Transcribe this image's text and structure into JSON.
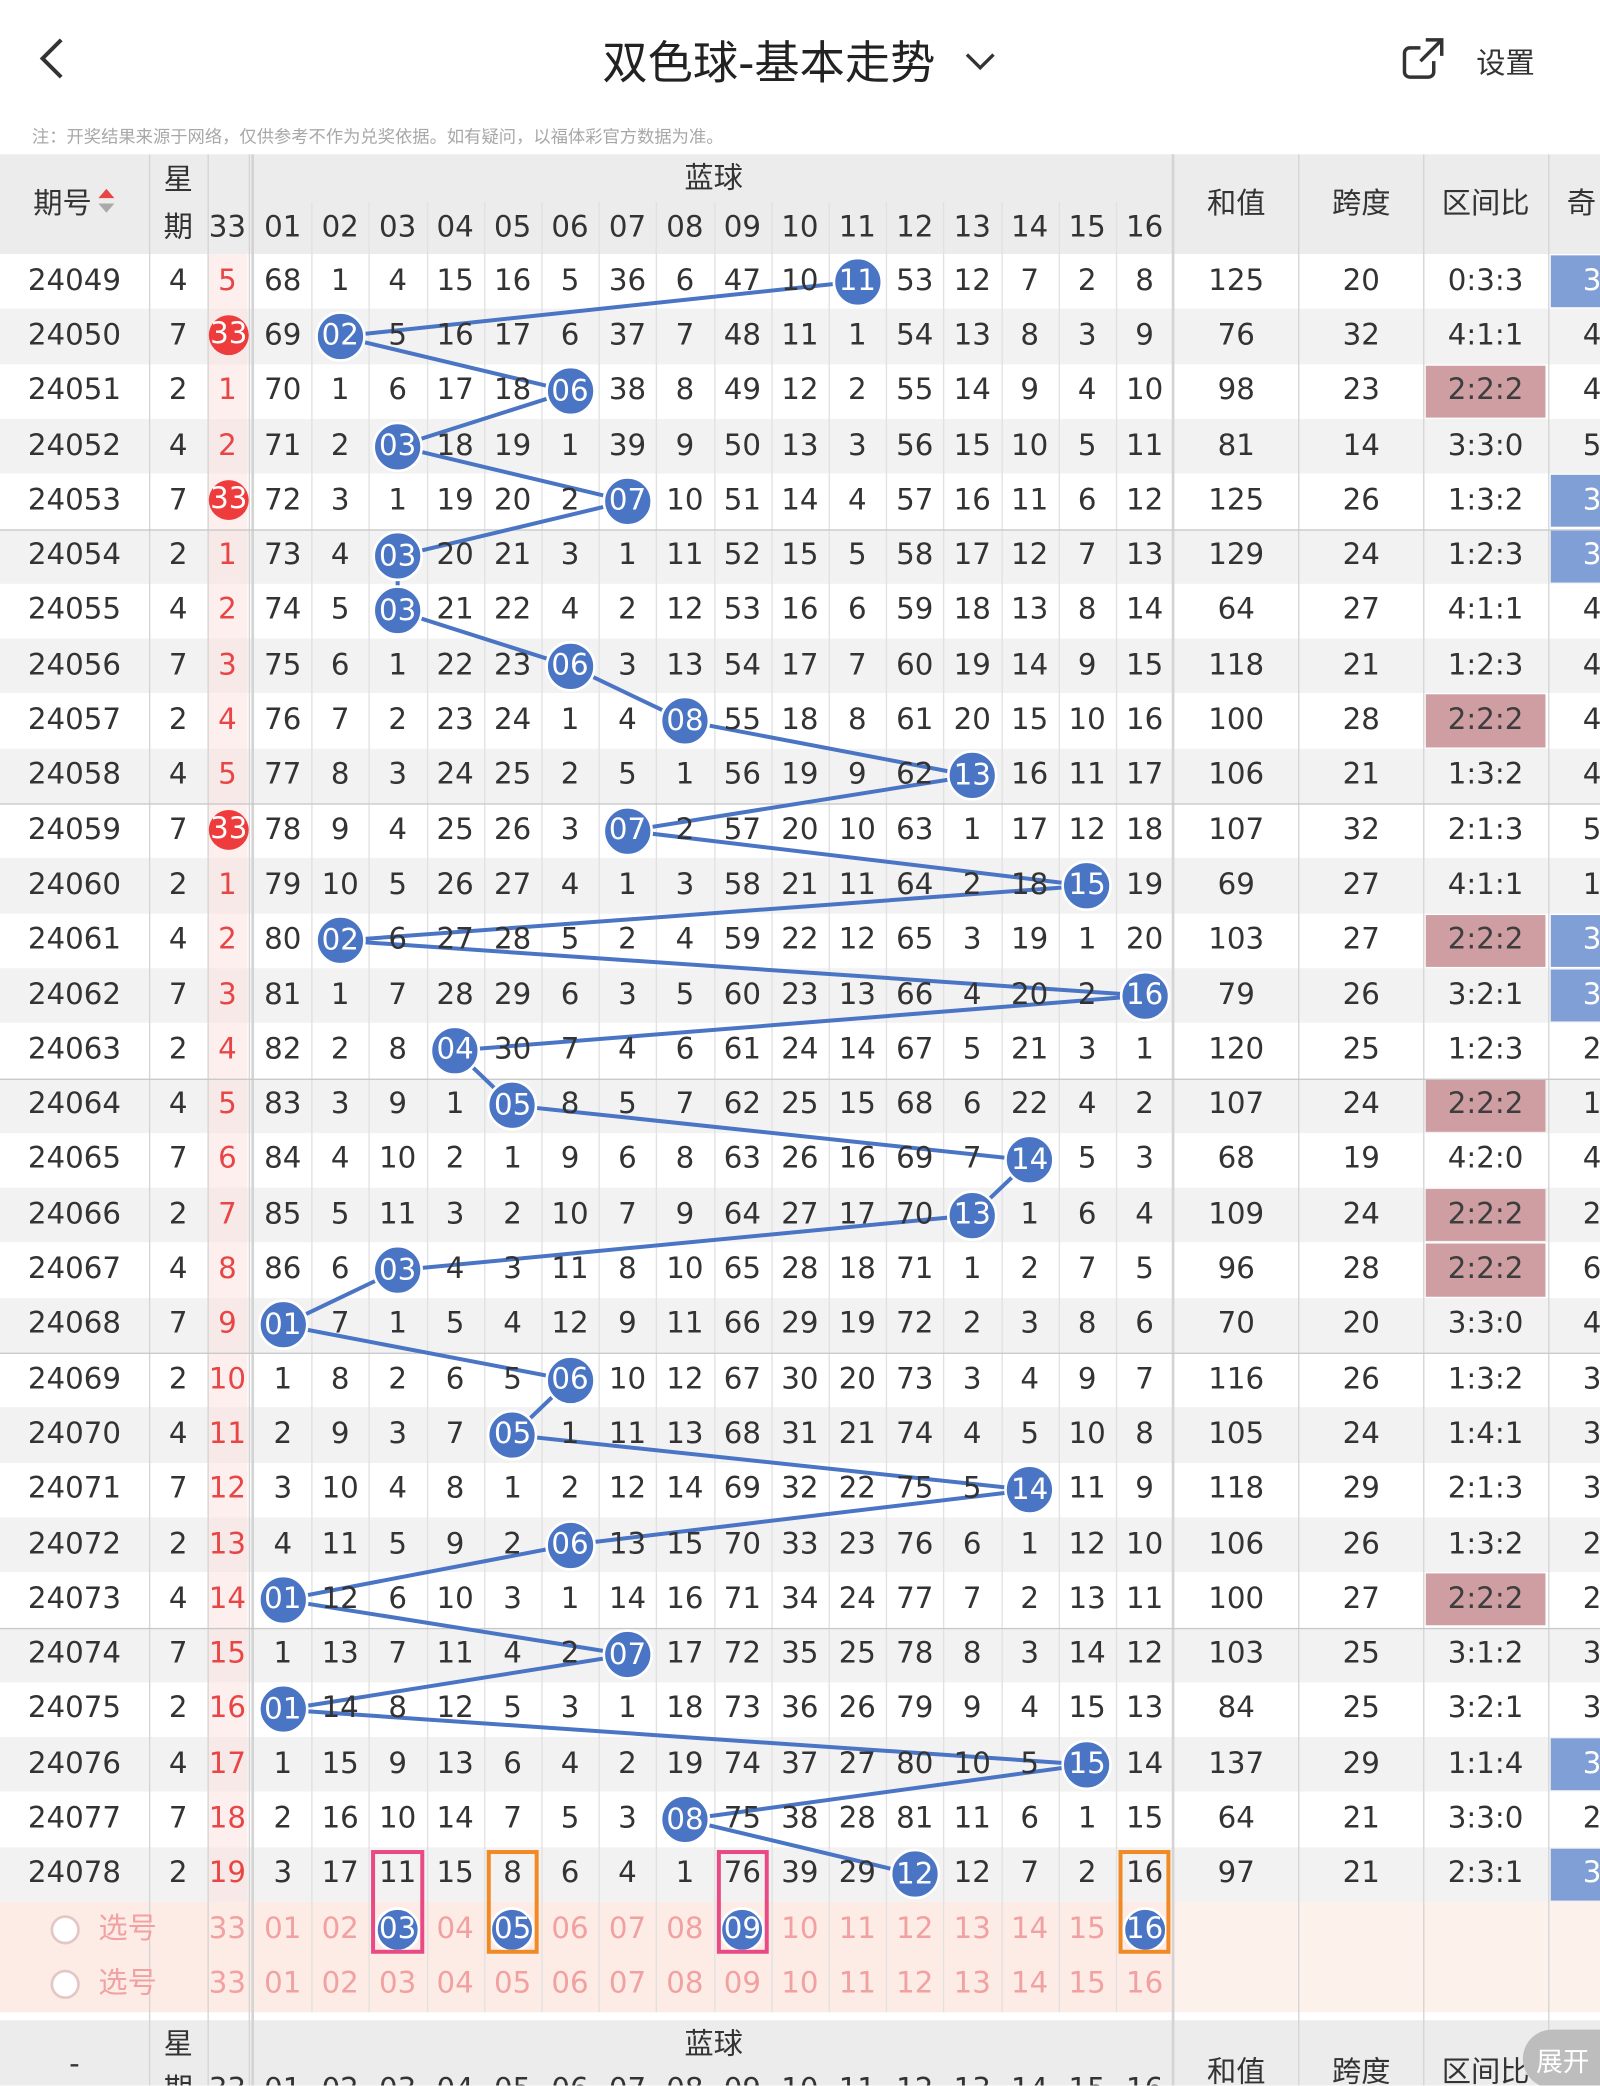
{
  "header": {
    "back_icon": "back-chevron-icon",
    "title": "双色球-基本走势",
    "title_dropdown_icon": "chevron-down-icon",
    "share_icon": "share-icon",
    "settings_label": "设置"
  },
  "note": "注：开奖结果来源于网络，仅供参考不作为兑奖依据。如有疑问，以福体彩官方数据为准。",
  "table": {
    "issue_label": "期号",
    "sort_icon": "sort-arrows-icon",
    "week_label_1": "星",
    "week_label_2": "期",
    "red_last_col": "33",
    "blue_label": "蓝球",
    "blue_cols": [
      "01",
      "02",
      "03",
      "04",
      "05",
      "06",
      "07",
      "08",
      "09",
      "10",
      "11",
      "12",
      "13",
      "14",
      "15",
      "16"
    ],
    "sum_label": "和值",
    "span_label": "跨度",
    "interval_label": "区间比",
    "odd_label_partial": "奇"
  },
  "rows": [
    {
      "issue": "24049",
      "week": "4",
      "red": "5",
      "red_ball": false,
      "blue": [
        68,
        1,
        4,
        15,
        16,
        5,
        36,
        6,
        47,
        10,
        "11",
        53,
        12,
        7,
        2,
        8
      ],
      "sum": "125",
      "span": "20",
      "ratio": "0:3:3",
      "ratio_style": "",
      "odd": "3",
      "odd_style": "blue"
    },
    {
      "issue": "24050",
      "week": "7",
      "red": "33",
      "red_ball": true,
      "blue": [
        69,
        "02",
        5,
        16,
        17,
        6,
        37,
        7,
        48,
        11,
        1,
        54,
        13,
        8,
        3,
        9
      ],
      "sum": "76",
      "span": "32",
      "ratio": "4:1:1",
      "ratio_style": "",
      "odd": "4",
      "odd_style": ""
    },
    {
      "issue": "24051",
      "week": "2",
      "red": "1",
      "red_ball": false,
      "blue": [
        70,
        1,
        6,
        17,
        18,
        "06",
        38,
        8,
        49,
        12,
        2,
        55,
        14,
        9,
        4,
        10
      ],
      "sum": "98",
      "span": "23",
      "ratio": "2:2:2",
      "ratio_style": "red",
      "odd": "4",
      "odd_style": ""
    },
    {
      "issue": "24052",
      "week": "4",
      "red": "2",
      "red_ball": false,
      "blue": [
        71,
        2,
        "03",
        18,
        19,
        1,
        39,
        9,
        50,
        13,
        3,
        56,
        15,
        10,
        5,
        11
      ],
      "sum": "81",
      "span": "14",
      "ratio": "3:3:0",
      "ratio_style": "",
      "odd": "5",
      "odd_style": ""
    },
    {
      "issue": "24053",
      "week": "7",
      "red": "33",
      "red_ball": true,
      "blue": [
        72,
        3,
        1,
        19,
        20,
        2,
        "07",
        10,
        51,
        14,
        4,
        57,
        16,
        11,
        6,
        12
      ],
      "sum": "125",
      "span": "26",
      "ratio": "1:3:2",
      "ratio_style": "",
      "odd": "3",
      "odd_style": "blue"
    },
    {
      "issue": "24054",
      "week": "2",
      "red": "1",
      "red_ball": false,
      "blue": [
        73,
        4,
        "03",
        20,
        21,
        3,
        1,
        11,
        52,
        15,
        5,
        58,
        17,
        12,
        7,
        13
      ],
      "sum": "129",
      "span": "24",
      "ratio": "1:2:3",
      "ratio_style": "",
      "odd": "3",
      "odd_style": "blue"
    },
    {
      "issue": "24055",
      "week": "4",
      "red": "2",
      "red_ball": false,
      "blue": [
        74,
        5,
        "03",
        21,
        22,
        4,
        2,
        12,
        53,
        16,
        6,
        59,
        18,
        13,
        8,
        14
      ],
      "sum": "64",
      "span": "27",
      "ratio": "4:1:1",
      "ratio_style": "",
      "odd": "4",
      "odd_style": ""
    },
    {
      "issue": "24056",
      "week": "7",
      "red": "3",
      "red_ball": false,
      "blue": [
        75,
        6,
        1,
        22,
        23,
        "06",
        3,
        13,
        54,
        17,
        7,
        60,
        19,
        14,
        9,
        15
      ],
      "sum": "118",
      "span": "21",
      "ratio": "1:2:3",
      "ratio_style": "",
      "odd": "4",
      "odd_style": ""
    },
    {
      "issue": "24057",
      "week": "2",
      "red": "4",
      "red_ball": false,
      "blue": [
        76,
        7,
        2,
        23,
        24,
        1,
        4,
        "08",
        55,
        18,
        8,
        61,
        20,
        15,
        10,
        16
      ],
      "sum": "100",
      "span": "28",
      "ratio": "2:2:2",
      "ratio_style": "red",
      "odd": "4",
      "odd_style": ""
    },
    {
      "issue": "24058",
      "week": "4",
      "red": "5",
      "red_ball": false,
      "blue": [
        77,
        8,
        3,
        24,
        25,
        2,
        5,
        1,
        56,
        19,
        9,
        62,
        "13",
        16,
        11,
        17
      ],
      "sum": "106",
      "span": "21",
      "ratio": "1:3:2",
      "ratio_style": "",
      "odd": "4",
      "odd_style": ""
    },
    {
      "issue": "24059",
      "week": "7",
      "red": "33",
      "red_ball": true,
      "blue": [
        78,
        9,
        4,
        25,
        26,
        3,
        "07",
        2,
        57,
        20,
        10,
        63,
        1,
        17,
        12,
        18
      ],
      "sum": "107",
      "span": "32",
      "ratio": "2:1:3",
      "ratio_style": "",
      "odd": "5",
      "odd_style": ""
    },
    {
      "issue": "24060",
      "week": "2",
      "red": "1",
      "red_ball": false,
      "blue": [
        79,
        10,
        5,
        26,
        27,
        4,
        1,
        3,
        58,
        21,
        11,
        64,
        2,
        18,
        "15",
        19
      ],
      "sum": "69",
      "span": "27",
      "ratio": "4:1:1",
      "ratio_style": "",
      "odd": "1",
      "odd_style": ""
    },
    {
      "issue": "24061",
      "week": "4",
      "red": "2",
      "red_ball": false,
      "blue": [
        80,
        "02",
        6,
        27,
        28,
        5,
        2,
        4,
        59,
        22,
        12,
        65,
        3,
        19,
        1,
        20
      ],
      "sum": "103",
      "span": "27",
      "ratio": "2:2:2",
      "ratio_style": "red",
      "odd": "3",
      "odd_style": "blue"
    },
    {
      "issue": "24062",
      "week": "7",
      "red": "3",
      "red_ball": false,
      "blue": [
        81,
        1,
        7,
        28,
        29,
        6,
        3,
        5,
        60,
        23,
        13,
        66,
        4,
        20,
        2,
        "16"
      ],
      "sum": "79",
      "span": "26",
      "ratio": "3:2:1",
      "ratio_style": "",
      "odd": "3",
      "odd_style": "blue"
    },
    {
      "issue": "24063",
      "week": "2",
      "red": "4",
      "red_ball": false,
      "blue": [
        82,
        2,
        8,
        "04",
        30,
        7,
        4,
        6,
        61,
        24,
        14,
        67,
        5,
        21,
        3,
        1
      ],
      "sum": "120",
      "span": "25",
      "ratio": "1:2:3",
      "ratio_style": "",
      "odd": "2",
      "odd_style": ""
    },
    {
      "issue": "24064",
      "week": "4",
      "red": "5",
      "red_ball": false,
      "blue": [
        83,
        3,
        9,
        1,
        "05",
        8,
        5,
        7,
        62,
        25,
        15,
        68,
        6,
        22,
        4,
        2
      ],
      "sum": "107",
      "span": "24",
      "ratio": "2:2:2",
      "ratio_style": "red",
      "odd": "1",
      "odd_style": ""
    },
    {
      "issue": "24065",
      "week": "7",
      "red": "6",
      "red_ball": false,
      "blue": [
        84,
        4,
        10,
        2,
        1,
        9,
        6,
        8,
        63,
        26,
        16,
        69,
        7,
        "14",
        5,
        3
      ],
      "sum": "68",
      "span": "19",
      "ratio": "4:2:0",
      "ratio_style": "",
      "odd": "4",
      "odd_style": ""
    },
    {
      "issue": "24066",
      "week": "2",
      "red": "7",
      "red_ball": false,
      "blue": [
        85,
        5,
        11,
        3,
        2,
        10,
        7,
        9,
        64,
        27,
        17,
        70,
        "13",
        1,
        6,
        4
      ],
      "sum": "109",
      "span": "24",
      "ratio": "2:2:2",
      "ratio_style": "red",
      "odd": "2",
      "odd_style": ""
    },
    {
      "issue": "24067",
      "week": "4",
      "red": "8",
      "red_ball": false,
      "blue": [
        86,
        6,
        "03",
        4,
        3,
        11,
        8,
        10,
        65,
        28,
        18,
        71,
        1,
        2,
        7,
        5
      ],
      "sum": "96",
      "span": "28",
      "ratio": "2:2:2",
      "ratio_style": "red",
      "odd": "6",
      "odd_style": ""
    },
    {
      "issue": "24068",
      "week": "7",
      "red": "9",
      "red_ball": false,
      "blue": [
        "01",
        7,
        1,
        5,
        4,
        12,
        9,
        11,
        66,
        29,
        19,
        72,
        2,
        3,
        8,
        6
      ],
      "sum": "70",
      "span": "20",
      "ratio": "3:3:0",
      "ratio_style": "",
      "odd": "4",
      "odd_style": ""
    },
    {
      "issue": "24069",
      "week": "2",
      "red": "10",
      "red_ball": false,
      "blue": [
        1,
        8,
        2,
        6,
        5,
        "06",
        10,
        12,
        67,
        30,
        20,
        73,
        3,
        4,
        9,
        7
      ],
      "sum": "116",
      "span": "26",
      "ratio": "1:3:2",
      "ratio_style": "",
      "odd": "3",
      "odd_style": ""
    },
    {
      "issue": "24070",
      "week": "4",
      "red": "11",
      "red_ball": false,
      "blue": [
        2,
        9,
        3,
        7,
        "05",
        1,
        11,
        13,
        68,
        31,
        21,
        74,
        4,
        5,
        10,
        8
      ],
      "sum": "105",
      "span": "24",
      "ratio": "1:4:1",
      "ratio_style": "",
      "odd": "3",
      "odd_style": ""
    },
    {
      "issue": "24071",
      "week": "7",
      "red": "12",
      "red_ball": false,
      "blue": [
        3,
        10,
        4,
        8,
        1,
        2,
        12,
        14,
        69,
        32,
        22,
        75,
        5,
        "14",
        11,
        9
      ],
      "sum": "118",
      "span": "29",
      "ratio": "2:1:3",
      "ratio_style": "",
      "odd": "3",
      "odd_style": ""
    },
    {
      "issue": "24072",
      "week": "2",
      "red": "13",
      "red_ball": false,
      "blue": [
        4,
        11,
        5,
        9,
        2,
        "06",
        13,
        15,
        70,
        33,
        23,
        76,
        6,
        1,
        12,
        10
      ],
      "sum": "106",
      "span": "26",
      "ratio": "1:3:2",
      "ratio_style": "",
      "odd": "2",
      "odd_style": ""
    },
    {
      "issue": "24073",
      "week": "4",
      "red": "14",
      "red_ball": false,
      "blue": [
        "01",
        12,
        6,
        10,
        3,
        1,
        14,
        16,
        71,
        34,
        24,
        77,
        7,
        2,
        13,
        11
      ],
      "sum": "100",
      "span": "27",
      "ratio": "2:2:2",
      "ratio_style": "red",
      "odd": "2",
      "odd_style": ""
    },
    {
      "issue": "24074",
      "week": "7",
      "red": "15",
      "red_ball": false,
      "blue": [
        1,
        13,
        7,
        11,
        4,
        2,
        "07",
        17,
        72,
        35,
        25,
        78,
        8,
        3,
        14,
        12
      ],
      "sum": "103",
      "span": "25",
      "ratio": "3:1:2",
      "ratio_style": "",
      "odd": "3",
      "odd_style": ""
    },
    {
      "issue": "24075",
      "week": "2",
      "red": "16",
      "red_ball": false,
      "blue": [
        "01",
        14,
        8,
        12,
        5,
        3,
        1,
        18,
        73,
        36,
        26,
        79,
        9,
        4,
        15,
        13
      ],
      "sum": "84",
      "span": "25",
      "ratio": "3:2:1",
      "ratio_style": "",
      "odd": "3",
      "odd_style": ""
    },
    {
      "issue": "24076",
      "week": "4",
      "red": "17",
      "red_ball": false,
      "blue": [
        1,
        15,
        9,
        13,
        6,
        4,
        2,
        19,
        74,
        37,
        27,
        80,
        10,
        5,
        "15",
        14
      ],
      "sum": "137",
      "span": "29",
      "ratio": "1:1:4",
      "ratio_style": "",
      "odd": "3",
      "odd_style": "blue"
    },
    {
      "issue": "24077",
      "week": "7",
      "red": "18",
      "red_ball": false,
      "blue": [
        2,
        16,
        10,
        14,
        7,
        5,
        3,
        "08",
        75,
        38,
        28,
        81,
        11,
        6,
        1,
        15
      ],
      "sum": "64",
      "span": "21",
      "ratio": "3:3:0",
      "ratio_style": "",
      "odd": "2",
      "odd_style": ""
    },
    {
      "issue": "24078",
      "week": "2",
      "red": "19",
      "red_ball": false,
      "blue": [
        3,
        17,
        11,
        15,
        8,
        6,
        4,
        1,
        76,
        39,
        29,
        "12",
        12,
        7,
        2,
        16
      ],
      "sum": "97",
      "span": "21",
      "ratio": "2:3:1",
      "ratio_style": "",
      "odd": "3",
      "odd_style": "blue"
    }
  ],
  "select_rows": [
    {
      "label": "选号",
      "red": "33",
      "nums": [
        "01",
        "02",
        "03",
        "04",
        "05",
        "06",
        "07",
        "08",
        "09",
        "10",
        "11",
        "12",
        "13",
        "14",
        "15",
        "16"
      ],
      "picked": [
        "03",
        "05",
        "09",
        "16"
      ]
    },
    {
      "label": "选号",
      "red": "33",
      "nums": [
        "01",
        "02",
        "03",
        "04",
        "05",
        "06",
        "07",
        "08",
        "09",
        "10",
        "11",
        "12",
        "13",
        "14",
        "15",
        "16"
      ],
      "picked": []
    }
  ],
  "footer": {
    "issue_label": "-",
    "week_label_1": "星",
    "week_label_2": "期",
    "red_last_col": "33",
    "blue_label": "蓝球",
    "blue_cols": [
      "01",
      "02",
      "03",
      "04",
      "05",
      "06",
      "07",
      "08",
      "09",
      "10",
      "11",
      "12",
      "13",
      "14",
      "15",
      "16"
    ],
    "sum_label": "和值",
    "span_label": "跨度",
    "interval_label": "区间比",
    "expand_label": "展开"
  },
  "colors": {
    "blue_ball": "#4a74c4",
    "red_ball": "#ee3b3b",
    "red_text": "#e84545",
    "pink_text": "#f1a1a1",
    "badge_red": "#cf9ea2",
    "badge_blue": "#7f9fd6",
    "frame_pink": "#e84a86",
    "frame_orange": "#f08a24",
    "stripe": "#f2f2f2",
    "header_bg": "#ececec",
    "select_bg": "#fdece6"
  }
}
